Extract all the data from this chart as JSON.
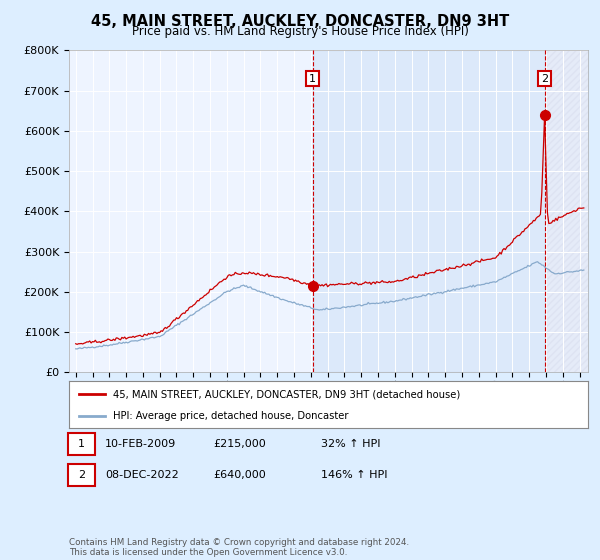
{
  "title": "45, MAIN STREET, AUCKLEY, DONCASTER, DN9 3HT",
  "subtitle": "Price paid vs. HM Land Registry's House Price Index (HPI)",
  "red_label": "45, MAIN STREET, AUCKLEY, DONCASTER, DN9 3HT (detached house)",
  "blue_label": "HPI: Average price, detached house, Doncaster",
  "annotation1_date": "10-FEB-2009",
  "annotation1_price": "£215,000",
  "annotation1_pct": "32% ↑ HPI",
  "annotation2_date": "08-DEC-2022",
  "annotation2_price": "£640,000",
  "annotation2_pct": "146% ↑ HPI",
  "footer": "Contains HM Land Registry data © Crown copyright and database right 2024.\nThis data is licensed under the Open Government Licence v3.0.",
  "bg_color": "#ddeeff",
  "plot_bg": "#eef4ff",
  "red_color": "#cc0000",
  "blue_color": "#88aacc",
  "anno1_x": 2009.1,
  "anno2_x": 2022.92,
  "sale1_y": 215000,
  "sale2_y": 640000,
  "ylim": [
    0,
    800000
  ],
  "xlim_start": 1994.6,
  "xlim_end": 2025.5
}
